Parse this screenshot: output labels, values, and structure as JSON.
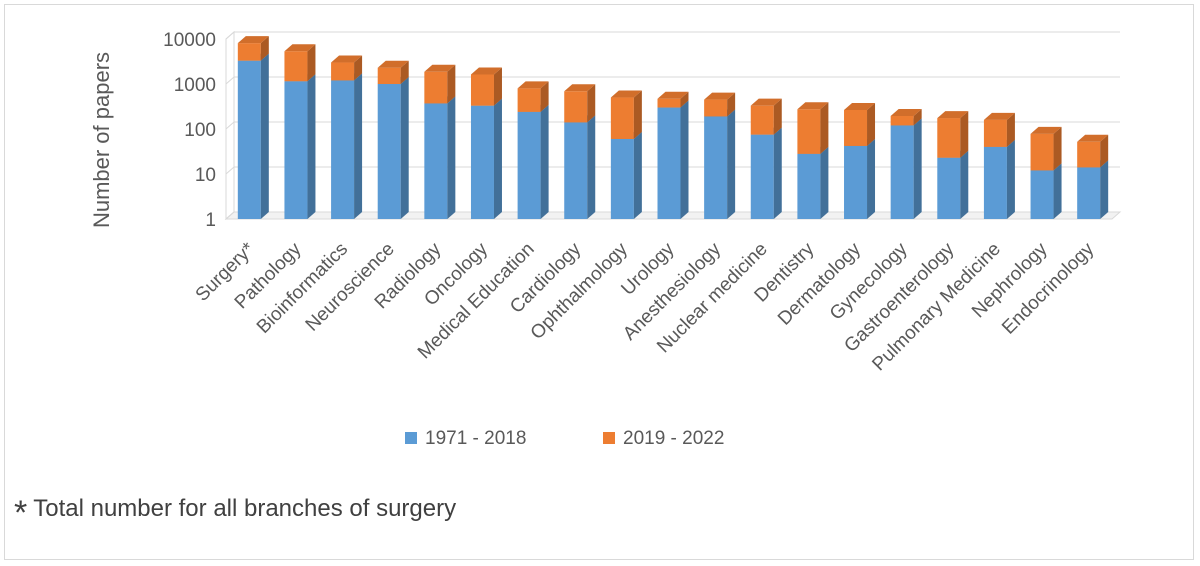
{
  "chart_data": {
    "type": "bar",
    "stacked": true,
    "style": "3d-column",
    "title": "",
    "xlabel": "",
    "ylabel": "Number of papers",
    "yscale": "log",
    "ylim": [
      1,
      10000
    ],
    "yticks": [
      "1",
      "10",
      "100",
      "1000",
      "10000"
    ],
    "grid": true,
    "legend_position": "bottom",
    "categories": [
      "Surgery*",
      "Pathology",
      "Bioinformatics",
      "Neuroscience",
      "Radiology",
      "Oncology",
      "Medical Education",
      "Cardiology",
      "Ophthalmology",
      "Urology",
      "Anesthesiology",
      "Nuclear medicine",
      "Dentistry",
      "Dermatology",
      "Gynecology",
      "Gastroenterology",
      "Pulmonary Medicine",
      "Nephrology",
      "Endocrinology"
    ],
    "series": [
      {
        "name": "1971 - 2018",
        "color": "#5b9bd5",
        "values": [
          3300,
          1150,
          1200,
          1000,
          370,
          330,
          240,
          140,
          60,
          300,
          190,
          75,
          28,
          42,
          120,
          23,
          40,
          12,
          14
        ]
      },
      {
        "name": "2019 - 2022",
        "color": "#ed7d31",
        "values": [
          4800,
          4200,
          1800,
          1300,
          1500,
          1300,
          560,
          550,
          440,
          170,
          260,
          255,
          247,
          223,
          75,
          152,
          120,
          66,
          38
        ]
      }
    ]
  },
  "footnote": {
    "marker": "*",
    "text": "Total number for all branches of surgery"
  }
}
